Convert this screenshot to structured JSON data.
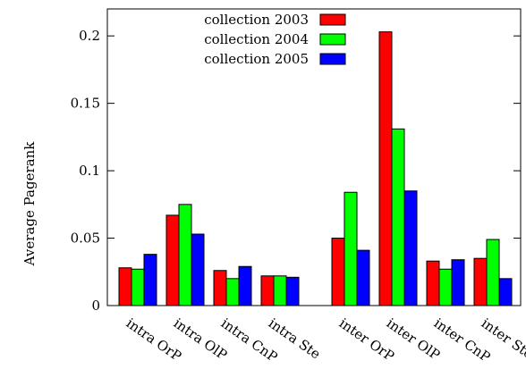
{
  "chart_data": {
    "type": "bar",
    "ylabel": "Average Pagerank",
    "xlabel": "",
    "ylim": [
      0,
      0.22
    ],
    "yticks": [
      {
        "value": 0,
        "label": "0"
      },
      {
        "value": 0.05,
        "label": "0.05"
      },
      {
        "value": 0.1,
        "label": "0.1"
      },
      {
        "value": 0.15,
        "label": "0.15"
      },
      {
        "value": 0.2,
        "label": "0.2"
      }
    ],
    "categories": [
      "intra OrP",
      "intra OlP",
      "intra CnP",
      "intra Ste",
      "inter OrP",
      "inter OlP",
      "inter CnP",
      "inter Ste"
    ],
    "group_gap_after_index": 3,
    "legend_position": "top-center",
    "grid": false,
    "series": [
      {
        "name": "collection 2003",
        "color": "#ff0000",
        "values": [
          0.028,
          0.067,
          0.026,
          0.022,
          0.05,
          0.203,
          0.033,
          0.035
        ]
      },
      {
        "name": "collection 2004",
        "color": "#00ff00",
        "values": [
          0.027,
          0.075,
          0.02,
          0.022,
          0.084,
          0.131,
          0.027,
          0.049
        ]
      },
      {
        "name": "collection 2005",
        "color": "#0000ff",
        "values": [
          0.038,
          0.053,
          0.029,
          0.021,
          0.041,
          0.085,
          0.034,
          0.02
        ]
      }
    ]
  }
}
